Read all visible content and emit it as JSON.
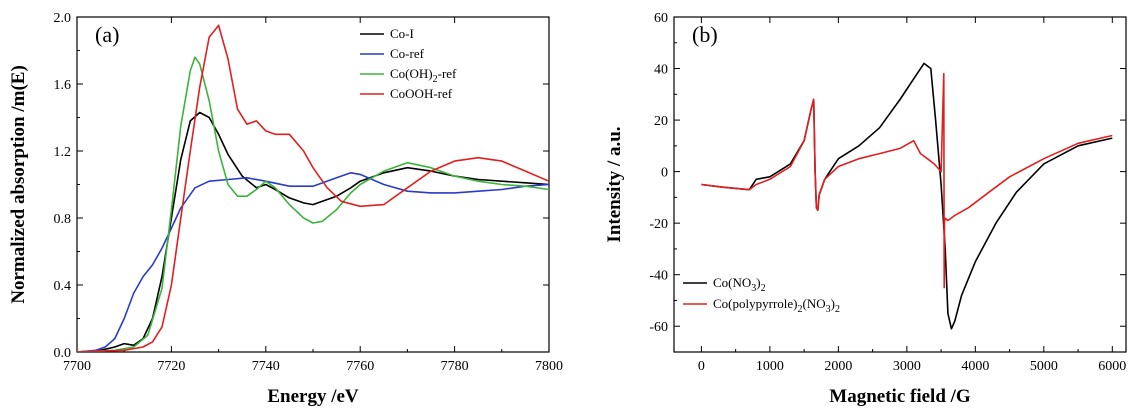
{
  "chart_data": [
    {
      "type": "line",
      "panel_label": "(a)",
      "xlabel": "Energy /eV",
      "ylabel": "Normalized absorption /m(E)",
      "xlim": [
        7700,
        7800
      ],
      "ylim": [
        0.0,
        2.0
      ],
      "xticks": [
        7700,
        7720,
        7740,
        7760,
        7780,
        7800
      ],
      "yticks": [
        0.0,
        0.4,
        0.8,
        1.2,
        1.6,
        2.0
      ],
      "legend_position": "top-right",
      "series": [
        {
          "name": "Co-I",
          "color": "#000000",
          "x": [
            7700,
            7705,
            7708,
            7710,
            7712,
            7714,
            7716,
            7718,
            7720,
            7722,
            7724,
            7726,
            7728,
            7730,
            7732,
            7735,
            7738,
            7740,
            7742,
            7745,
            7748,
            7750,
            7752,
            7755,
            7758,
            7760,
            7765,
            7770,
            7775,
            7780,
            7785,
            7790,
            7795,
            7800
          ],
          "y": [
            0.0,
            0.01,
            0.03,
            0.05,
            0.04,
            0.08,
            0.2,
            0.45,
            0.8,
            1.15,
            1.38,
            1.43,
            1.4,
            1.3,
            1.18,
            1.05,
            0.98,
            1.0,
            0.97,
            0.92,
            0.89,
            0.88,
            0.9,
            0.93,
            0.98,
            1.02,
            1.07,
            1.1,
            1.08,
            1.05,
            1.03,
            1.02,
            1.01,
            1.0
          ]
        },
        {
          "name": "Co-ref",
          "color": "#2a3cc8",
          "x": [
            7700,
            7704,
            7706,
            7708,
            7710,
            7712,
            7714,
            7716,
            7718,
            7720,
            7722,
            7725,
            7728,
            7732,
            7736,
            7740,
            7745,
            7750,
            7755,
            7758,
            7760,
            7765,
            7770,
            7775,
            7780,
            7785,
            7790,
            7795,
            7800
          ],
          "y": [
            0.0,
            0.01,
            0.03,
            0.08,
            0.2,
            0.35,
            0.45,
            0.52,
            0.62,
            0.74,
            0.86,
            0.98,
            1.02,
            1.03,
            1.04,
            1.02,
            0.99,
            0.99,
            1.04,
            1.07,
            1.06,
            1.0,
            0.96,
            0.95,
            0.95,
            0.96,
            0.97,
            0.99,
            1.0
          ]
        },
        {
          "name": "Co(OH)₂-ref",
          "sub_name": [
            "Co(OH)",
            "2",
            "-ref"
          ],
          "color": "#3cb43c",
          "x": [
            7700,
            7708,
            7712,
            7715,
            7718,
            7720,
            7722,
            7724,
            7725,
            7726,
            7728,
            7730,
            7732,
            7734,
            7736,
            7738,
            7740,
            7742,
            7745,
            7748,
            7750,
            7752,
            7755,
            7758,
            7760,
            7765,
            7770,
            7775,
            7780,
            7785,
            7790,
            7795,
            7800
          ],
          "y": [
            0.0,
            0.01,
            0.03,
            0.1,
            0.38,
            0.85,
            1.35,
            1.68,
            1.76,
            1.72,
            1.5,
            1.2,
            1.0,
            0.93,
            0.93,
            0.97,
            1.02,
            0.98,
            0.88,
            0.8,
            0.77,
            0.78,
            0.85,
            0.95,
            1.0,
            1.08,
            1.13,
            1.1,
            1.05,
            1.02,
            1.0,
            0.99,
            0.97
          ]
        },
        {
          "name": "CoOOH-ref",
          "color": "#e02020",
          "x": [
            7700,
            7710,
            7714,
            7716,
            7718,
            7720,
            7722,
            7724,
            7726,
            7728,
            7730,
            7732,
            7734,
            7736,
            7738,
            7740,
            7742,
            7745,
            7748,
            7750,
            7753,
            7756,
            7760,
            7765,
            7770,
            7775,
            7780,
            7785,
            7790,
            7795,
            7800
          ],
          "y": [
            0.0,
            0.01,
            0.03,
            0.06,
            0.15,
            0.4,
            0.8,
            1.2,
            1.58,
            1.88,
            1.95,
            1.75,
            1.45,
            1.36,
            1.38,
            1.32,
            1.3,
            1.3,
            1.2,
            1.1,
            0.98,
            0.9,
            0.87,
            0.88,
            0.98,
            1.08,
            1.14,
            1.16,
            1.14,
            1.08,
            1.02
          ]
        }
      ]
    },
    {
      "type": "line",
      "panel_label": "(b)",
      "xlabel": "Magnetic field /G",
      "ylabel": "Intensity / a.u.",
      "xlim": [
        -400,
        6200
      ],
      "ylim": [
        -70,
        60
      ],
      "xticks": [
        0,
        1000,
        2000,
        3000,
        4000,
        5000,
        6000
      ],
      "yticks": [
        -60,
        -40,
        -20,
        0,
        20,
        40,
        60
      ],
      "legend_position": "bottom-left",
      "series": [
        {
          "name": "Co(NO₃)₂",
          "sub_name": [
            "Co(NO",
            "3",
            ")",
            "2",
            ""
          ],
          "color": "#000000",
          "x": [
            0,
            300,
            700,
            800,
            1000,
            1300,
            1500,
            1600,
            1640,
            1660,
            1680,
            1700,
            1720,
            1800,
            2000,
            2300,
            2600,
            2900,
            3100,
            3250,
            3350,
            3420,
            3500,
            3560,
            3600,
            3650,
            3700,
            3800,
            4000,
            4300,
            4600,
            5000,
            5500,
            6000
          ],
          "y": [
            -5,
            -6,
            -7,
            -3,
            -2,
            3,
            12,
            24,
            28,
            0,
            -14,
            -15,
            -9,
            -3,
            5,
            10,
            17,
            28,
            36,
            42,
            40,
            20,
            -5,
            -30,
            -55,
            -61,
            -58,
            -48,
            -35,
            -20,
            -8,
            3,
            10,
            13
          ]
        },
        {
          "name": "Co(polypyrrole)₂(NO₃)₂",
          "sub_name": [
            "Co(polypyrrole)",
            "2",
            "(NO",
            "3",
            ")",
            "2",
            ""
          ],
          "color": "#e02020",
          "x": [
            0,
            300,
            700,
            800,
            1000,
            1300,
            1500,
            1600,
            1640,
            1660,
            1680,
            1700,
            1720,
            1800,
            2000,
            2300,
            2600,
            2900,
            3100,
            3200,
            3300,
            3400,
            3500,
            3540,
            3545,
            3550,
            3555,
            3600,
            3700,
            3900,
            4200,
            4500,
            5000,
            5500,
            6000
          ],
          "y": [
            -5,
            -6,
            -7,
            -5,
            -3,
            2,
            12,
            24,
            28,
            0,
            -14,
            -15,
            -9,
            -3,
            2,
            5,
            7,
            9,
            12,
            7,
            5,
            3,
            0,
            38,
            -45,
            -20,
            -18,
            -19,
            -17,
            -14,
            -8,
            -2,
            5,
            11,
            14
          ]
        }
      ]
    }
  ]
}
